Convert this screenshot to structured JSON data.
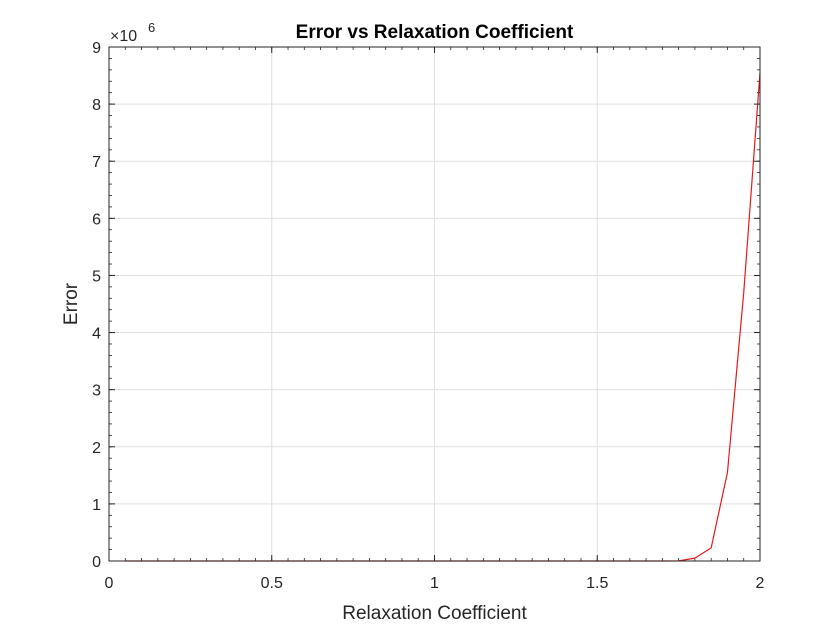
{
  "chart_data": {
    "type": "line",
    "title": "Error vs Relaxation Coefficient",
    "xlabel": "Relaxation Coefficient",
    "ylabel": "Error",
    "xlim": [
      0,
      2
    ],
    "ylim": [
      0,
      9000000
    ],
    "xticks": [
      0,
      0.5,
      1,
      1.5,
      2
    ],
    "xtick_labels": [
      "0",
      "0.5",
      "1",
      "1.5",
      "2"
    ],
    "yticks": [
      0,
      1000000,
      2000000,
      3000000,
      4000000,
      5000000,
      6000000,
      7000000,
      8000000,
      9000000
    ],
    "ytick_labels": [
      "0",
      "1",
      "2",
      "3",
      "4",
      "5",
      "6",
      "7",
      "8",
      "9"
    ],
    "y_exponent": {
      "base": "×10",
      "power": "6"
    },
    "grid": true,
    "series": [
      {
        "color": "#e41a1c",
        "x": [
          0.05,
          0.1,
          0.15,
          0.2,
          0.25,
          0.3,
          0.35,
          0.4,
          0.45,
          0.5,
          0.55,
          0.6,
          0.65,
          0.7,
          0.75,
          0.8,
          0.85,
          0.9,
          0.95,
          1.0,
          1.05,
          1.1,
          1.15,
          1.2,
          1.25,
          1.3,
          1.35,
          1.4,
          1.45,
          1.5,
          1.55,
          1.6,
          1.65,
          1.7,
          1.75,
          1.8,
          1.85,
          1.9,
          1.95,
          2.0
        ],
        "y": [
          0,
          0,
          0,
          0,
          0,
          0,
          0,
          0,
          0,
          0,
          0,
          0,
          0,
          0,
          0,
          0,
          0,
          0,
          0,
          0,
          0,
          0,
          0,
          0,
          0,
          0,
          0,
          0,
          0,
          0,
          0,
          0,
          0,
          0,
          2000,
          50000,
          230000,
          1550000,
          4700000,
          8550000
        ]
      }
    ]
  }
}
